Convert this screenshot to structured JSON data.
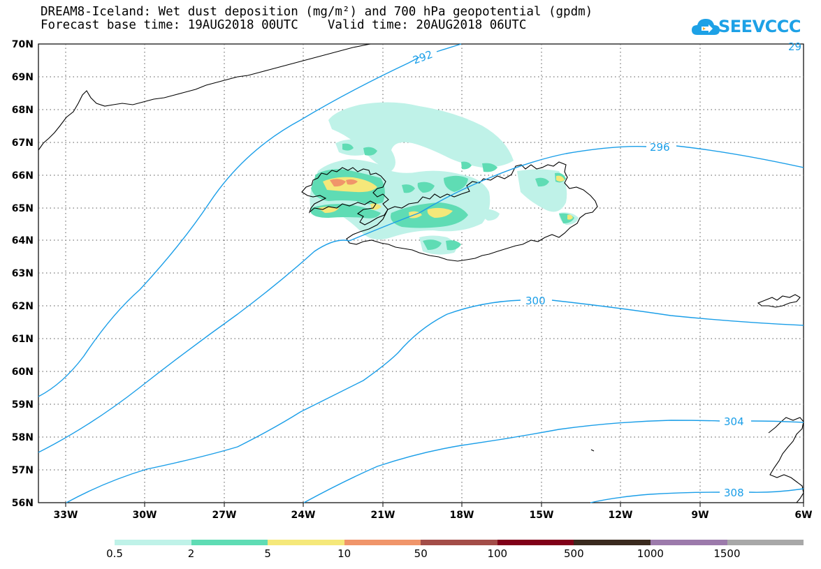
{
  "header": {
    "title_line": "DREAM8-Iceland: Wet dust deposition (mg/m²) and 700 hPa geopotential (gpdm)",
    "time_line": "Forecast base time: 19AUG2018 00UTC    Valid time: 20AUG2018 06UTC"
  },
  "logo": {
    "text": "SEEVCCC",
    "icon": "cloud-icon"
  },
  "axes": {
    "lat_labels": [
      "70N",
      "69N",
      "68N",
      "67N",
      "66N",
      "65N",
      "64N",
      "63N",
      "62N",
      "61N",
      "60N",
      "59N",
      "58N",
      "57N",
      "56N"
    ],
    "lon_labels": [
      "33W",
      "30W",
      "27W",
      "24W",
      "21W",
      "18W",
      "15W",
      "12W",
      "9W",
      "6W"
    ]
  },
  "contours": {
    "labels": [
      "292",
      "296",
      "300",
      "304",
      "308",
      "29"
    ],
    "color": "#1a9ee8"
  },
  "legend": {
    "labels": [
      "0.5",
      "2",
      "5",
      "10",
      "50",
      "100",
      "500",
      "1000",
      "1500"
    ],
    "colors": [
      "#bff2e8",
      "#5fdcb4",
      "#f5e87a",
      "#f0956a",
      "#a34d48",
      "#800018",
      "#3a2a1e",
      "#9c7aab",
      "#a8a8a8"
    ]
  },
  "colors": {
    "deposition_light": "#bff2e8",
    "deposition_green": "#5fdcb4",
    "deposition_yellow": "#f5e87a",
    "deposition_orange": "#f0956a",
    "contour": "#1a9ee8",
    "frame": "#000000"
  }
}
